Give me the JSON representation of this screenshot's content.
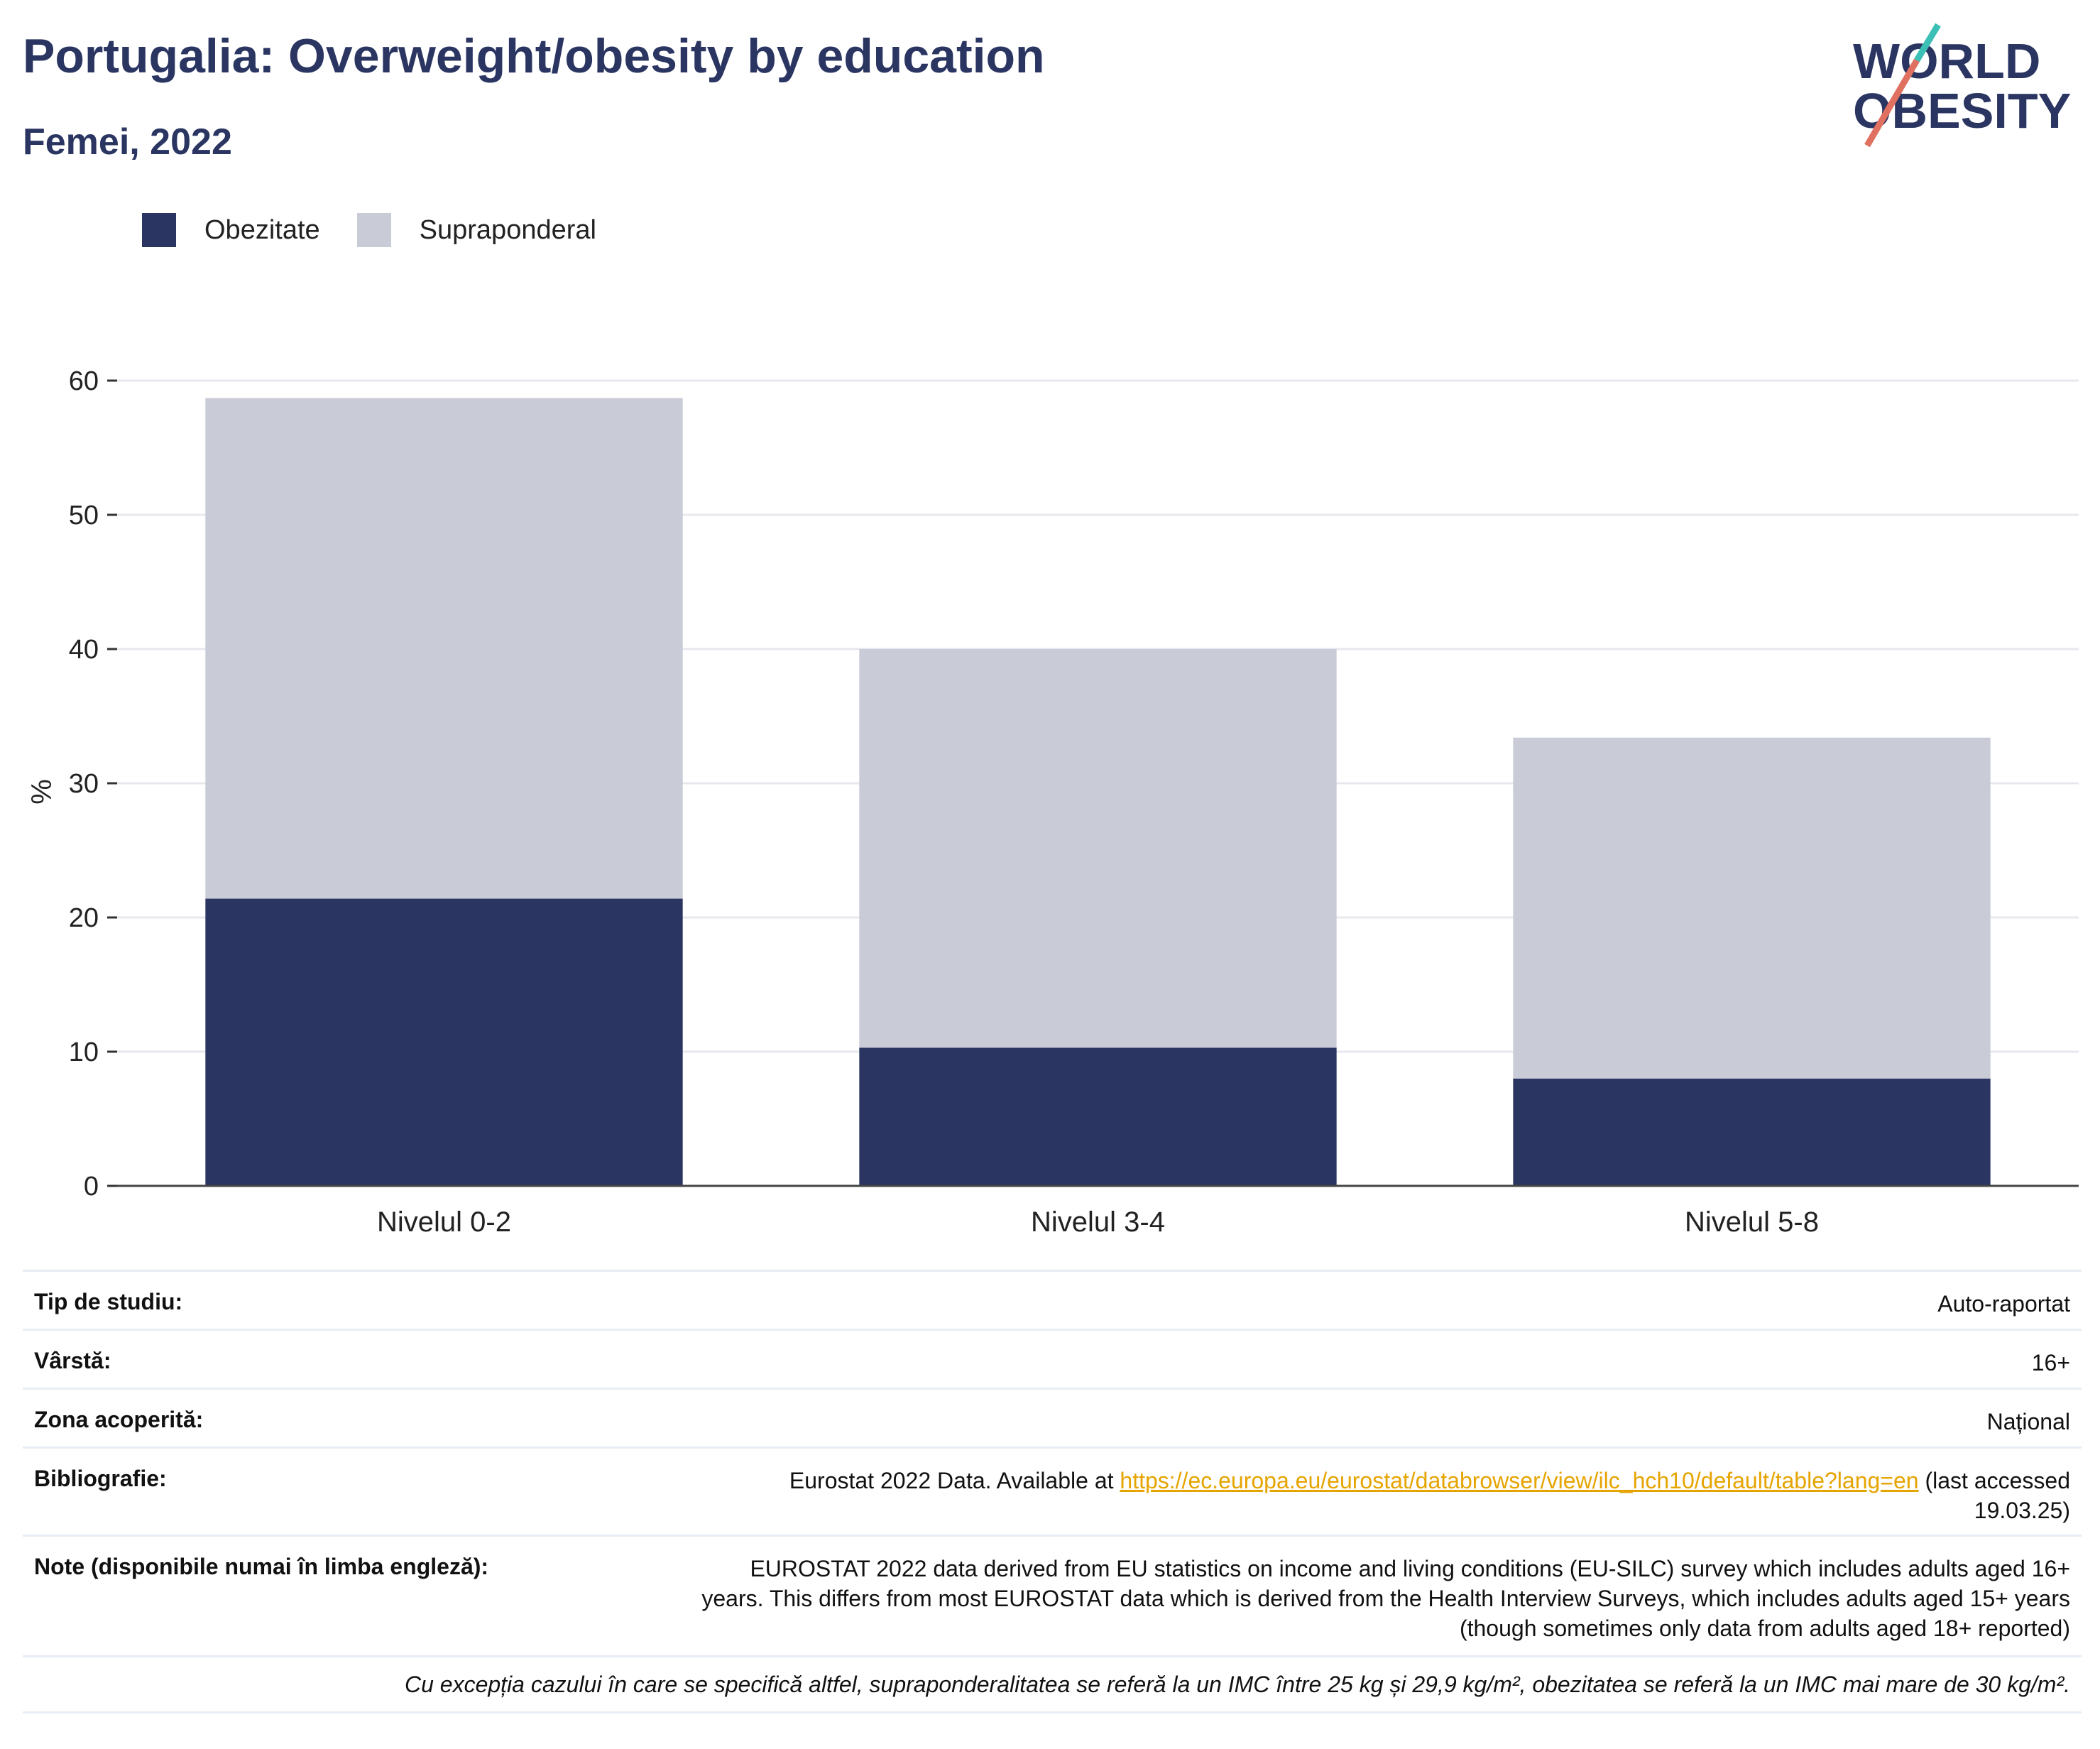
{
  "header": {
    "title": "Portugalia: Overweight/obesity by education",
    "subtitle": "Femei, 2022"
  },
  "logo": {
    "line1": "WORLD",
    "line2": "OBESITY"
  },
  "colors": {
    "obesity": "#2a3562",
    "overweight": "#c9cbd6",
    "title": "#2a3562",
    "link": "#e6a400"
  },
  "chart_data": {
    "type": "bar",
    "stacked": true,
    "categories": [
      "Nivelul 0-2",
      "Nivelul 3-4",
      "Nivelul 5-8"
    ],
    "series": [
      {
        "name": "Obezitate",
        "values": [
          21.4,
          10.3,
          8.0
        ]
      },
      {
        "name": "Supraponderal",
        "values": [
          37.3,
          29.7,
          25.4
        ]
      }
    ],
    "ylabel": "%",
    "ylim": [
      0,
      60
    ],
    "yticks": [
      0,
      10,
      20,
      30,
      40,
      50,
      60
    ],
    "grid": true,
    "legend_position": "top-left"
  },
  "meta": {
    "study_type_label": "Tip de studiu:",
    "study_type": "Auto-raportat",
    "age_label": "Vârstă:",
    "age": "16+",
    "area_label": "Zona acoperită:",
    "area": "Național",
    "bib_label": "Bibliografie:",
    "bib_pre": "Eurostat 2022 Data. Available at ",
    "bib_link": "https://ec.europa.eu/eurostat/databrowser/view/ilc_hch10/default/table?lang=en",
    "bib_post": " (last accessed",
    "bib_date": "19.03.25)",
    "notes_label": "Note (disponibile numai în limba engleză):",
    "notes_line1": "EUROSTAT 2022 data derived from EU statistics on income and living conditions (EU-SILC) survey which includes adults aged 16+",
    "notes_line2": "years. This differs from most EUROSTAT data which is derived from the Health Interview Surveys, which includes adults aged 15+ years",
    "notes_line3": "(though sometimes only data from adults aged 18+ reported)",
    "footnote": "Cu excepția cazului în care se specifică altfel, supraponderalitatea se referă la un IMC între 25 kg și 29,9 kg/m², obezitatea se referă la un IMC mai mare de 30 kg/m²."
  }
}
